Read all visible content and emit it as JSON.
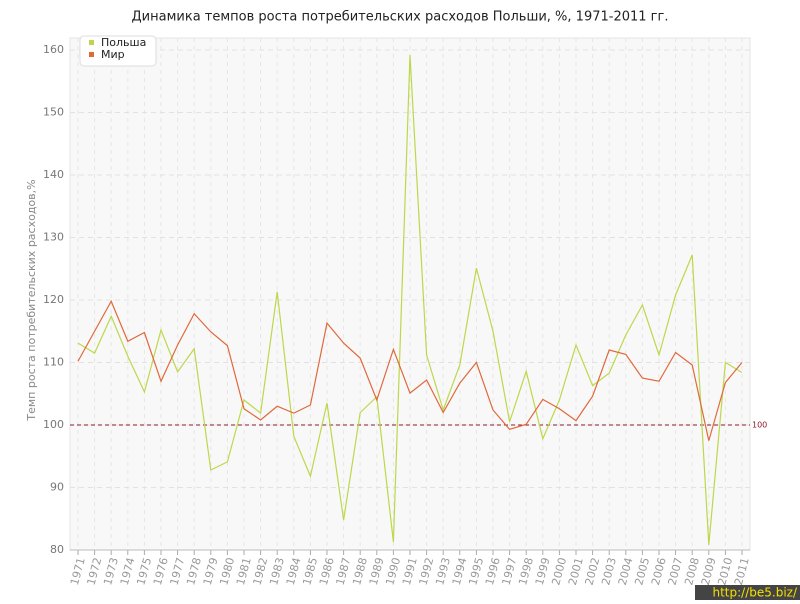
{
  "chart_data": {
    "type": "line",
    "title": "Динамика темпов роста потребительских расходов Польши, %, 1971-2011 гг.",
    "y_label": "Темп роста потребительских расходов,%",
    "categories": [
      "1971",
      "1972",
      "1973",
      "1974",
      "1975",
      "1976",
      "1977",
      "1978",
      "1979",
      "1980",
      "1981",
      "1982",
      "1983",
      "1984",
      "1985",
      "1986",
      "1987",
      "1988",
      "1989",
      "1990",
      "1991",
      "1992",
      "1993",
      "1994",
      "1995",
      "1996",
      "1997",
      "1998",
      "1999",
      "2000",
      "2001",
      "2002",
      "2003",
      "2004",
      "2005",
      "2006",
      "2007",
      "2008",
      "2009",
      "2010",
      "2011"
    ],
    "series": [
      {
        "name": "Польша",
        "color": "#bcd84a",
        "values": [
          113.1,
          111.5,
          117.4,
          111,
          105.3,
          115.2,
          108.5,
          112.2,
          92.8,
          94.1,
          104,
          101.9,
          121.3,
          98.2,
          91.8,
          103.5,
          84.8,
          102,
          104.5,
          81.3,
          159.2,
          111.2,
          102.4,
          109.6,
          125.1,
          115,
          100.5,
          108.6,
          97.8,
          104,
          112.8,
          106.3,
          108.3,
          114.4,
          119.2,
          111.2,
          120.8,
          127.2,
          80.8,
          110,
          108.4
        ]
      },
      {
        "name": "Мир",
        "color": "#e0693c",
        "values": [
          110.2,
          115,
          119.8,
          113.4,
          114.8,
          107,
          112.8,
          117.8,
          114.9,
          112.7,
          102.6,
          100.8,
          103,
          101.9,
          103.2,
          116.3,
          113.1,
          110.7,
          104,
          112.1,
          105.1,
          107.2,
          102,
          106.7,
          110,
          102.4,
          99.3,
          100.1,
          104.1,
          102.6,
          100.7,
          104.6,
          112,
          111.3,
          107.5,
          107,
          111.6,
          109.6,
          97.5,
          106.8,
          110
        ]
      }
    ],
    "ylim": [
      80,
      160
    ],
    "yticks": [
      80,
      90,
      100,
      110,
      120,
      130,
      140,
      150,
      160
    ],
    "grid": true,
    "reference_line": 100,
    "reference_color": "#8b1a2b",
    "legend": "top-left",
    "watermark": "http://be5.biz/"
  }
}
